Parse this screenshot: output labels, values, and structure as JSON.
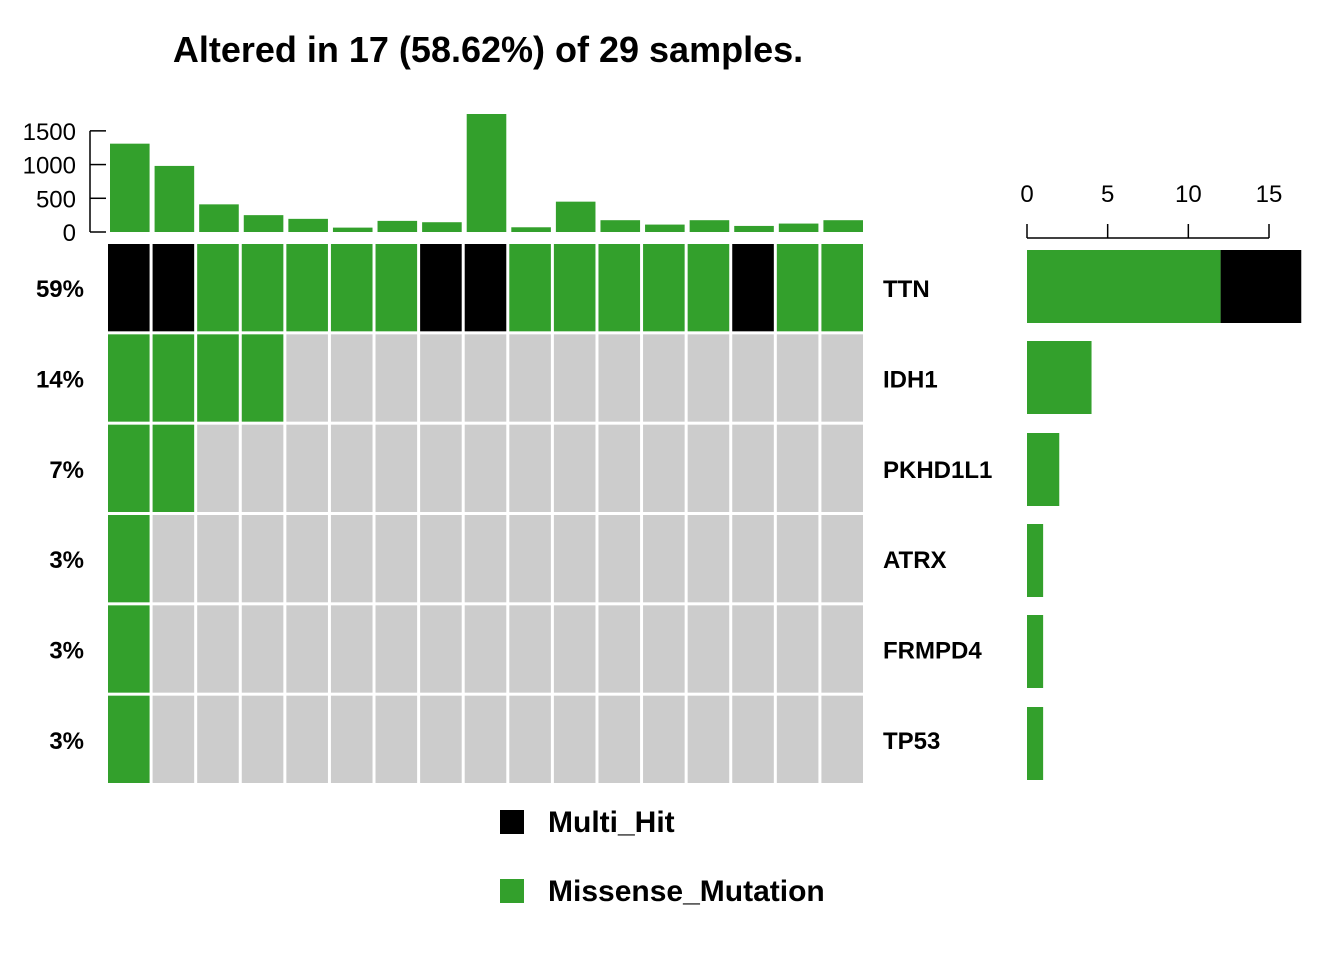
{
  "chart_data": {
    "type": "oncoplot",
    "title": "Altered in 17 (58.62%) of 29 samples.",
    "colors": {
      "Multi_Hit": "#000000",
      "Missense_Mutation": "#33a02c",
      "none": "#cccccc"
    },
    "genes": [
      "TTN",
      "IDH1",
      "PKHD1L1",
      "ATRX",
      "FRMPD4",
      "TP53"
    ],
    "gene_percent": [
      "59%",
      "14%",
      "7%",
      "3%",
      "3%",
      "3%"
    ],
    "matrix": [
      [
        "Multi_Hit",
        "Multi_Hit",
        "Missense_Mutation",
        "Missense_Mutation",
        "Missense_Mutation",
        "Missense_Mutation",
        "Missense_Mutation",
        "Multi_Hit",
        "Multi_Hit",
        "Missense_Mutation",
        "Missense_Mutation",
        "Missense_Mutation",
        "Missense_Mutation",
        "Missense_Mutation",
        "Multi_Hit",
        "Missense_Mutation",
        "Missense_Mutation"
      ],
      [
        "Missense_Mutation",
        "Missense_Mutation",
        "Missense_Mutation",
        "Missense_Mutation",
        "none",
        "none",
        "none",
        "none",
        "none",
        "none",
        "none",
        "none",
        "none",
        "none",
        "none",
        "none",
        "none"
      ],
      [
        "Missense_Mutation",
        "Missense_Mutation",
        "none",
        "none",
        "none",
        "none",
        "none",
        "none",
        "none",
        "none",
        "none",
        "none",
        "none",
        "none",
        "none",
        "none",
        "none"
      ],
      [
        "Missense_Mutation",
        "none",
        "none",
        "none",
        "none",
        "none",
        "none",
        "none",
        "none",
        "none",
        "none",
        "none",
        "none",
        "none",
        "none",
        "none",
        "none"
      ],
      [
        "Missense_Mutation",
        "none",
        "none",
        "none",
        "none",
        "none",
        "none",
        "none",
        "none",
        "none",
        "none",
        "none",
        "none",
        "none",
        "none",
        "none",
        "none"
      ],
      [
        "Missense_Mutation",
        "none",
        "none",
        "none",
        "none",
        "none",
        "none",
        "none",
        "none",
        "none",
        "none",
        "none",
        "none",
        "none",
        "none",
        "none",
        "none"
      ]
    ],
    "tmb": {
      "values": [
        1310,
        980,
        410,
        250,
        195,
        65,
        165,
        145,
        1750,
        70,
        450,
        175,
        110,
        175,
        90,
        125,
        175
      ],
      "ylim": [
        0,
        1750
      ],
      "ticks": [
        0,
        500,
        1000,
        1500
      ],
      "tick_labels": [
        "0",
        "500",
        "1000",
        "1500"
      ]
    },
    "gene_counts": {
      "series": [
        {
          "name": "Missense_Mutation",
          "values": [
            12,
            4,
            2,
            1,
            1,
            1
          ]
        },
        {
          "name": "Multi_Hit",
          "values": [
            5,
            0,
            0,
            0,
            0,
            0
          ]
        }
      ],
      "xlim": [
        0,
        17
      ],
      "ticks": [
        0,
        5,
        10,
        15
      ],
      "tick_labels": [
        "0",
        "5",
        "10",
        "15"
      ]
    },
    "legend": [
      {
        "label": "Multi_Hit",
        "color": "#000000"
      },
      {
        "label": "Missense_Mutation",
        "color": "#33a02c"
      }
    ]
  }
}
